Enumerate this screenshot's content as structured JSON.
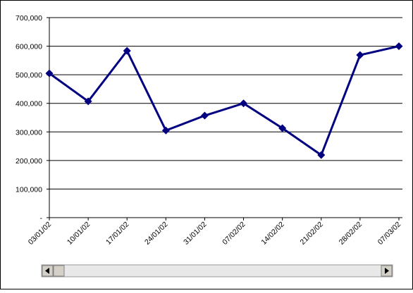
{
  "chart_data": {
    "type": "line",
    "categories": [
      "03/01/02",
      "10/01/02",
      "17/01/02",
      "24/01/02",
      "31/01/02",
      "07/02/02",
      "14/02/02",
      "21/02/02",
      "28/02/02",
      "07/03/02"
    ],
    "values": [
      505000,
      407000,
      584000,
      305000,
      357000,
      400000,
      313000,
      219000,
      569000,
      600000
    ],
    "color": "#000080",
    "ylim": [
      0,
      700000
    ],
    "yticks": [
      {
        "value": 0,
        "label": "-"
      },
      {
        "value": 100000,
        "label": "100,000"
      },
      {
        "value": 200000,
        "label": "200,000"
      },
      {
        "value": 300000,
        "label": "300,000"
      },
      {
        "value": 400000,
        "label": "400,000"
      },
      {
        "value": 500000,
        "label": "500,000"
      },
      {
        "value": 600000,
        "label": "600,000"
      },
      {
        "value": 700000,
        "label": "700,000"
      }
    ],
    "grid": true
  }
}
